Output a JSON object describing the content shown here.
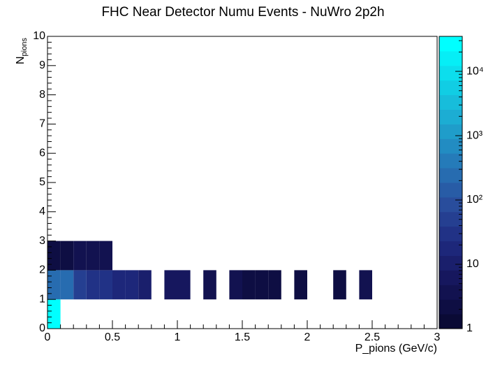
{
  "chart_data": {
    "type": "heatmap",
    "title": "FHC Near Detector Numu Events - NuWro 2p2h",
    "xlabel": "P_pions (GeV/c)",
    "ylabel": "N",
    "ylabel_sub": "pions",
    "xlim": [
      0,
      3
    ],
    "xticks": [
      0,
      0.5,
      1,
      1.5,
      2,
      2.5,
      3
    ],
    "ylim": [
      0,
      10
    ],
    "yticks": [
      0,
      1,
      2,
      3,
      4,
      5,
      6,
      7,
      8,
      9,
      10
    ],
    "zlim": [
      1,
      35000
    ],
    "zlog": true,
    "zticks": [
      1,
      10,
      {
        "value": 100,
        "label": "10²"
      },
      {
        "value": 1000,
        "label": "10³"
      },
      {
        "value": 10000,
        "label": "10⁴"
      }
    ],
    "contours": 20,
    "palette": [
      "#0a0a35",
      "#15155a",
      "#1f2a80",
      "#2a4f9e",
      "#2579b8",
      "#1ea6cf",
      "#10d2e6",
      "#00ffff"
    ],
    "cells": [
      {
        "x": [
          0,
          0.1
        ],
        "y": [
          0,
          1
        ],
        "value": 30000
      },
      {
        "x": [
          0,
          0.1
        ],
        "y": [
          1,
          2
        ],
        "value": 300
      },
      {
        "x": [
          0.1,
          0.2
        ],
        "y": [
          1,
          2
        ],
        "value": 300
      },
      {
        "x": [
          0.2,
          0.3
        ],
        "y": [
          1,
          2
        ],
        "value": 40
      },
      {
        "x": [
          0.3,
          0.4
        ],
        "y": [
          1,
          2
        ],
        "value": 25
      },
      {
        "x": [
          0.4,
          0.5
        ],
        "y": [
          1,
          2
        ],
        "value": 25
      },
      {
        "x": [
          0.5,
          0.6
        ],
        "y": [
          1,
          2
        ],
        "value": 15
      },
      {
        "x": [
          0.6,
          0.7
        ],
        "y": [
          1,
          2
        ],
        "value": 15
      },
      {
        "x": [
          0.7,
          0.8
        ],
        "y": [
          1,
          2
        ],
        "value": 10
      },
      {
        "x": [
          0.9,
          1.0
        ],
        "y": [
          1,
          2
        ],
        "value": 5
      },
      {
        "x": [
          1.0,
          1.1
        ],
        "y": [
          1,
          2
        ],
        "value": 5
      },
      {
        "x": [
          1.2,
          1.3
        ],
        "y": [
          1,
          2
        ],
        "value": 4
      },
      {
        "x": [
          1.4,
          1.5
        ],
        "y": [
          1,
          2
        ],
        "value": 3
      },
      {
        "x": [
          1.5,
          1.6
        ],
        "y": [
          1,
          2
        ],
        "value": 2
      },
      {
        "x": [
          1.6,
          1.7
        ],
        "y": [
          1,
          2
        ],
        "value": 2
      },
      {
        "x": [
          1.7,
          1.8
        ],
        "y": [
          1,
          2
        ],
        "value": 2
      },
      {
        "x": [
          1.9,
          2.0
        ],
        "y": [
          1,
          2
        ],
        "value": 2
      },
      {
        "x": [
          2.2,
          2.3
        ],
        "y": [
          1,
          2
        ],
        "value": 2
      },
      {
        "x": [
          2.4,
          2.5
        ],
        "y": [
          1,
          2
        ],
        "value": 3
      },
      {
        "x": [
          0,
          0.1
        ],
        "y": [
          2,
          3
        ],
        "value": 2
      },
      {
        "x": [
          0.1,
          0.2
        ],
        "y": [
          2,
          3
        ],
        "value": 2
      },
      {
        "x": [
          0.2,
          0.3
        ],
        "y": [
          2,
          3
        ],
        "value": 3
      },
      {
        "x": [
          0.3,
          0.4
        ],
        "y": [
          2,
          3
        ],
        "value": 3
      },
      {
        "x": [
          0.4,
          0.5
        ],
        "y": [
          2,
          3
        ],
        "value": 3
      }
    ]
  }
}
